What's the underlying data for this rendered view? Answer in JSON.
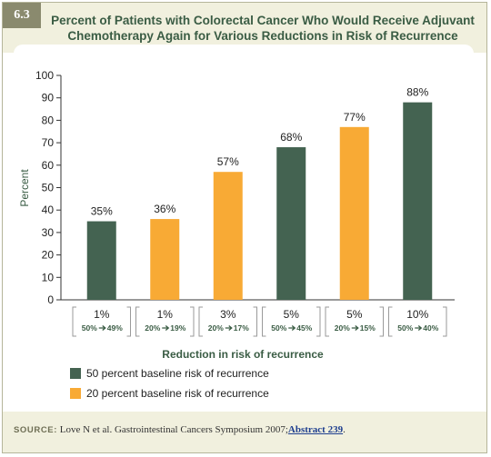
{
  "figure_number": "6.3",
  "title_line1": "Percent of Patients with Colorectal Cancer Who Would Receive Adjuvant",
  "title_line2": "Chemotherapy Again for Various Reductions in Risk of Recurrence",
  "colors": {
    "green": "#446351",
    "orange": "#f8aa35",
    "title": "#3a5c44"
  },
  "chart_data": {
    "type": "bar",
    "ylabel": "Percent",
    "xlabel": "Reduction in risk of recurrence",
    "ylim": [
      0,
      100
    ],
    "yticks": [
      0,
      10,
      20,
      30,
      40,
      50,
      60,
      70,
      80,
      90,
      100
    ],
    "grid": false,
    "bars": [
      {
        "category": "1%",
        "sublabel_from": "50%",
        "sublabel_to": "49%",
        "value": 35,
        "label": "35%",
        "series": 0
      },
      {
        "category": "1%",
        "sublabel_from": "20%",
        "sublabel_to": "19%",
        "value": 36,
        "label": "36%",
        "series": 1
      },
      {
        "category": "3%",
        "sublabel_from": "20%",
        "sublabel_to": "17%",
        "value": 57,
        "label": "57%",
        "series": 1
      },
      {
        "category": "5%",
        "sublabel_from": "50%",
        "sublabel_to": "45%",
        "value": 68,
        "label": "68%",
        "series": 0
      },
      {
        "category": "5%",
        "sublabel_from": "20%",
        "sublabel_to": "15%",
        "value": 77,
        "label": "77%",
        "series": 1
      },
      {
        "category": "10%",
        "sublabel_from": "50%",
        "sublabel_to": "40%",
        "value": 88,
        "label": "88%",
        "series": 0
      }
    ],
    "series": [
      {
        "name": "50 percent baseline risk of recurrence",
        "color": "#446351"
      },
      {
        "name": "20 percent baseline risk of recurrence",
        "color": "#f8aa35"
      }
    ]
  },
  "source": {
    "label": "SOURCE:",
    "text": "Love N et al. Gastrointestinal Cancers Symposium 2007;",
    "link": "Abstract 239",
    "end": "."
  }
}
